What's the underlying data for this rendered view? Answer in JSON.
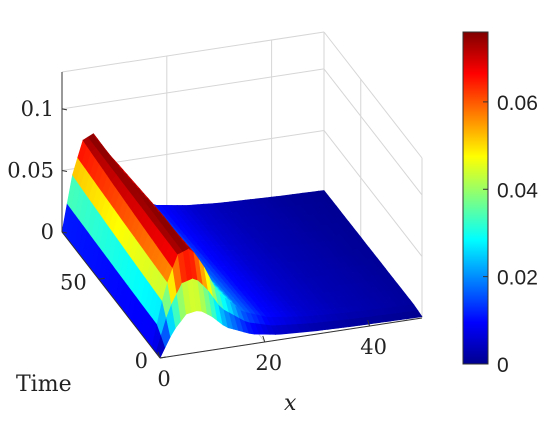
{
  "chart_data": {
    "type": "surface",
    "colormap": "jet",
    "x_label": "x",
    "time_label": "Time",
    "x_ticks": [
      "0",
      "20",
      "40"
    ],
    "time_ticks": [
      "0",
      "50"
    ],
    "z_ticks": [
      "0",
      "0.05",
      "0.1"
    ],
    "colorbar_ticks": [
      "0",
      "0.02",
      "0.04",
      "0.06"
    ],
    "x_range": [
      0,
      50
    ],
    "time_range": [
      0,
      80
    ],
    "z_range": [
      0,
      0.13
    ],
    "color_range": [
      0,
      0.076
    ],
    "grid": true,
    "colorbar_position": "right",
    "surface_profile": {
      "x": [
        0,
        2,
        4,
        6,
        8,
        10,
        14,
        18,
        24,
        30,
        36,
        42,
        48,
        50
      ],
      "z": [
        0.0,
        0.045,
        0.072,
        0.076,
        0.06,
        0.038,
        0.018,
        0.01,
        0.006,
        0.004,
        0.003,
        0.002,
        0.0015,
        0.0012
      ]
    }
  }
}
